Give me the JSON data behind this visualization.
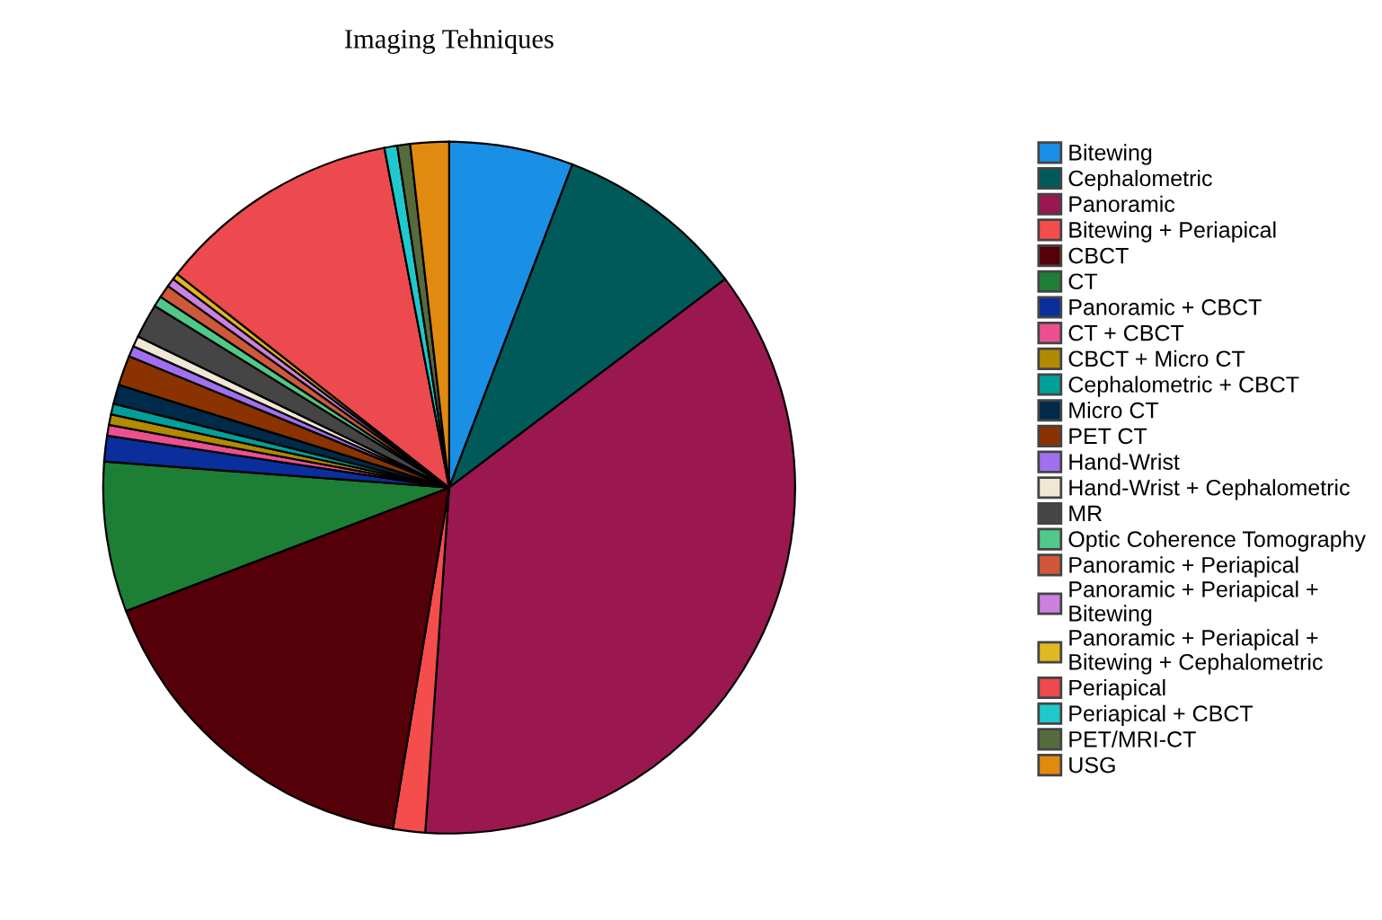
{
  "chart_data": {
    "type": "pie",
    "title": "Imaging Tehniques",
    "categories": [
      "Bitewing",
      "Cephalometric",
      "Panoramic",
      "Bitewing + Periapical",
      "CBCT",
      "CT",
      "Panoramic + CBCT",
      "CT + CBCT",
      "CBCT + Micro CT",
      "Cephalometric + CBCT",
      "Micro CT",
      "PET CT",
      "Hand-Wrist",
      "Hand-Wrist + Cephalometric",
      "MR",
      "Optic Coherence Tomography",
      "Panoramic + Periapical",
      "Panoramic + Periapical +\nBitewing",
      "Panoramic + Periapical +\nBitewing + Cephalometric",
      "Periapical",
      "Periapical + CBCT",
      "PET/MRI-CT",
      "USG"
    ],
    "values": [
      5.8,
      8.9,
      36.4,
      1.5,
      16.6,
      7.0,
      1.2,
      0.5,
      0.5,
      0.5,
      0.9,
      1.4,
      0.5,
      0.5,
      1.6,
      0.5,
      0.6,
      0.4,
      0.3,
      11.4,
      0.6,
      0.6,
      1.8
    ],
    "colors": [
      "#1a8fe6",
      "#005a5a",
      "#9b1750",
      "#f54c4c",
      "#550008",
      "#1d7f35",
      "#0a2e9c",
      "#ec5090",
      "#b08a00",
      "#00a09a",
      "#002a4a",
      "#8a3300",
      "#a070f0",
      "#f0e8d4",
      "#454545",
      "#50c888",
      "#d0583a",
      "#cc80e0",
      "#e0b820",
      "#ec4a4e",
      "#20c8cc",
      "#556b3c",
      "#e08a10"
    ],
    "legend": "right"
  }
}
